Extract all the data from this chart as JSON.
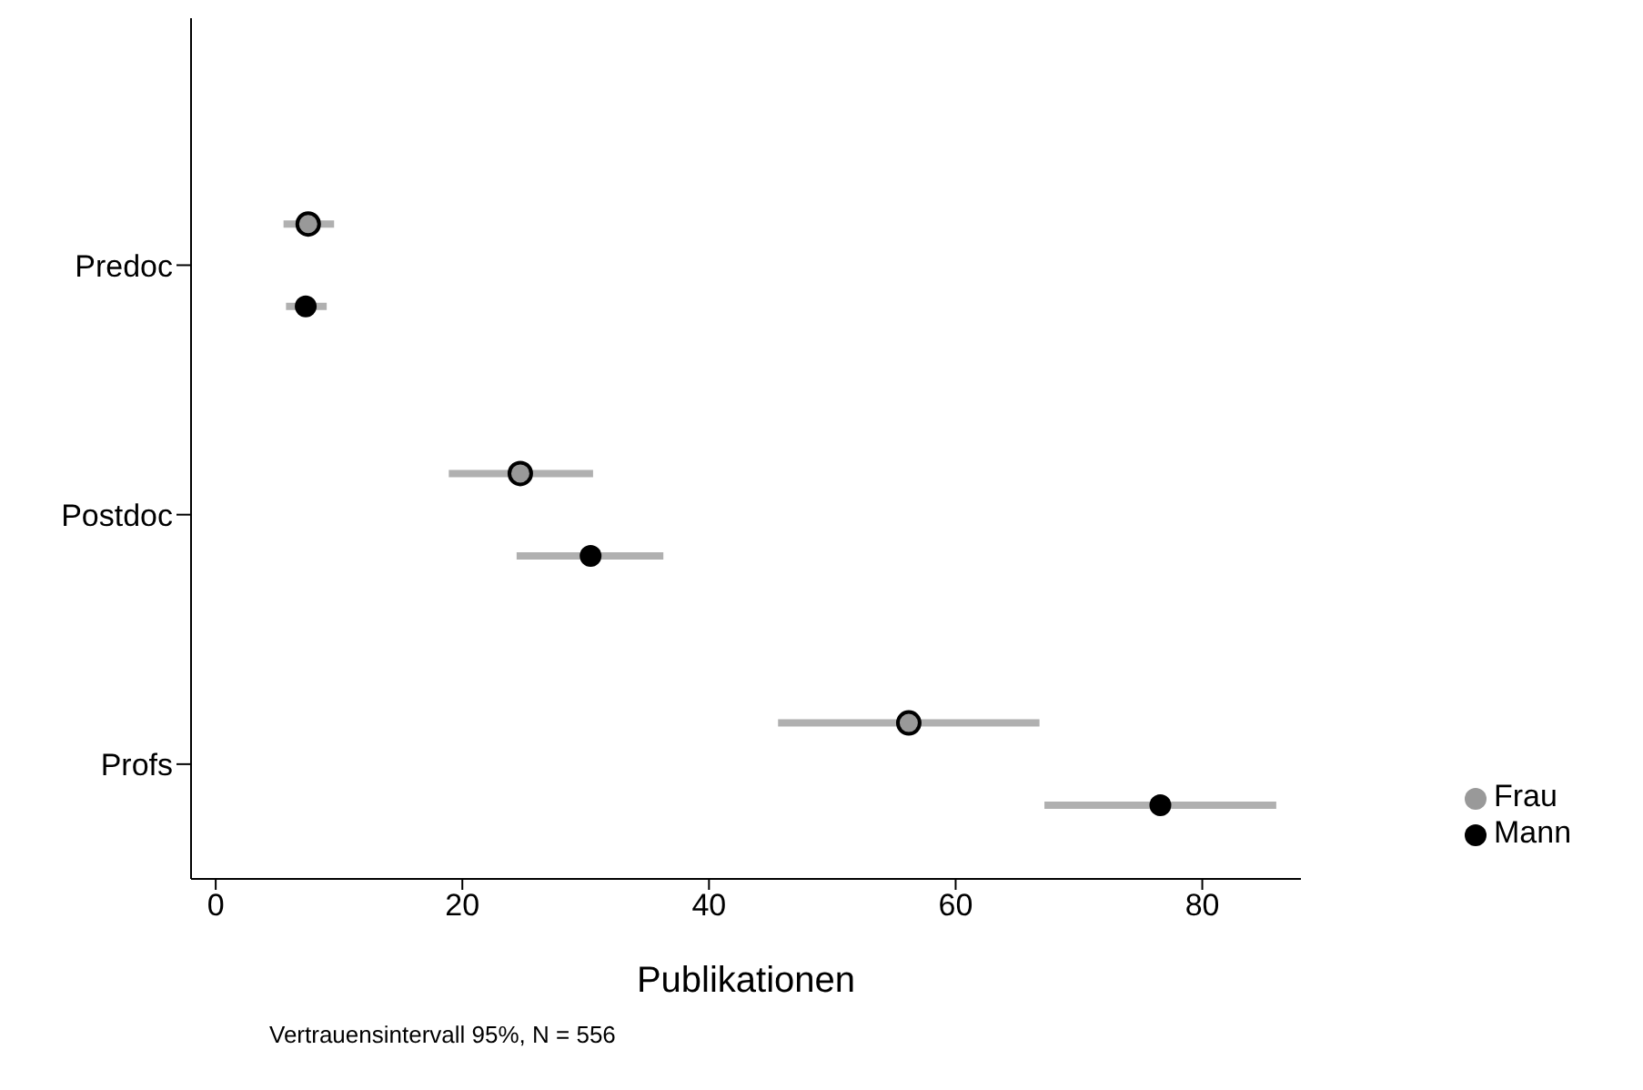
{
  "chart_data": {
    "type": "scatter",
    "orientation": "horizontal",
    "categories": [
      "Predoc",
      "Postdoc",
      "Profs"
    ],
    "xlabel": "Publikationen",
    "xlim": [
      -2,
      88
    ],
    "xticks": [
      0,
      20,
      40,
      60,
      80
    ],
    "grid": false,
    "legend": "bottom right",
    "marker": "circle",
    "annotations": [
      "Vertrauensintervall 95%, N = 556"
    ],
    "series": [
      {
        "name": "Frau",
        "color": "#999999",
        "values": [
          7.5,
          24.7,
          56.2
        ],
        "errors": [
          [
            5.5,
            9.6
          ],
          [
            18.9,
            30.6
          ],
          [
            45.6,
            66.8
          ]
        ]
      },
      {
        "name": "Mann",
        "color": "#000000",
        "values": [
          7.3,
          30.4,
          76.6
        ],
        "errors": [
          [
            5.7,
            9.0
          ],
          [
            24.4,
            36.3
          ],
          [
            67.2,
            86.0
          ]
        ]
      }
    ]
  }
}
